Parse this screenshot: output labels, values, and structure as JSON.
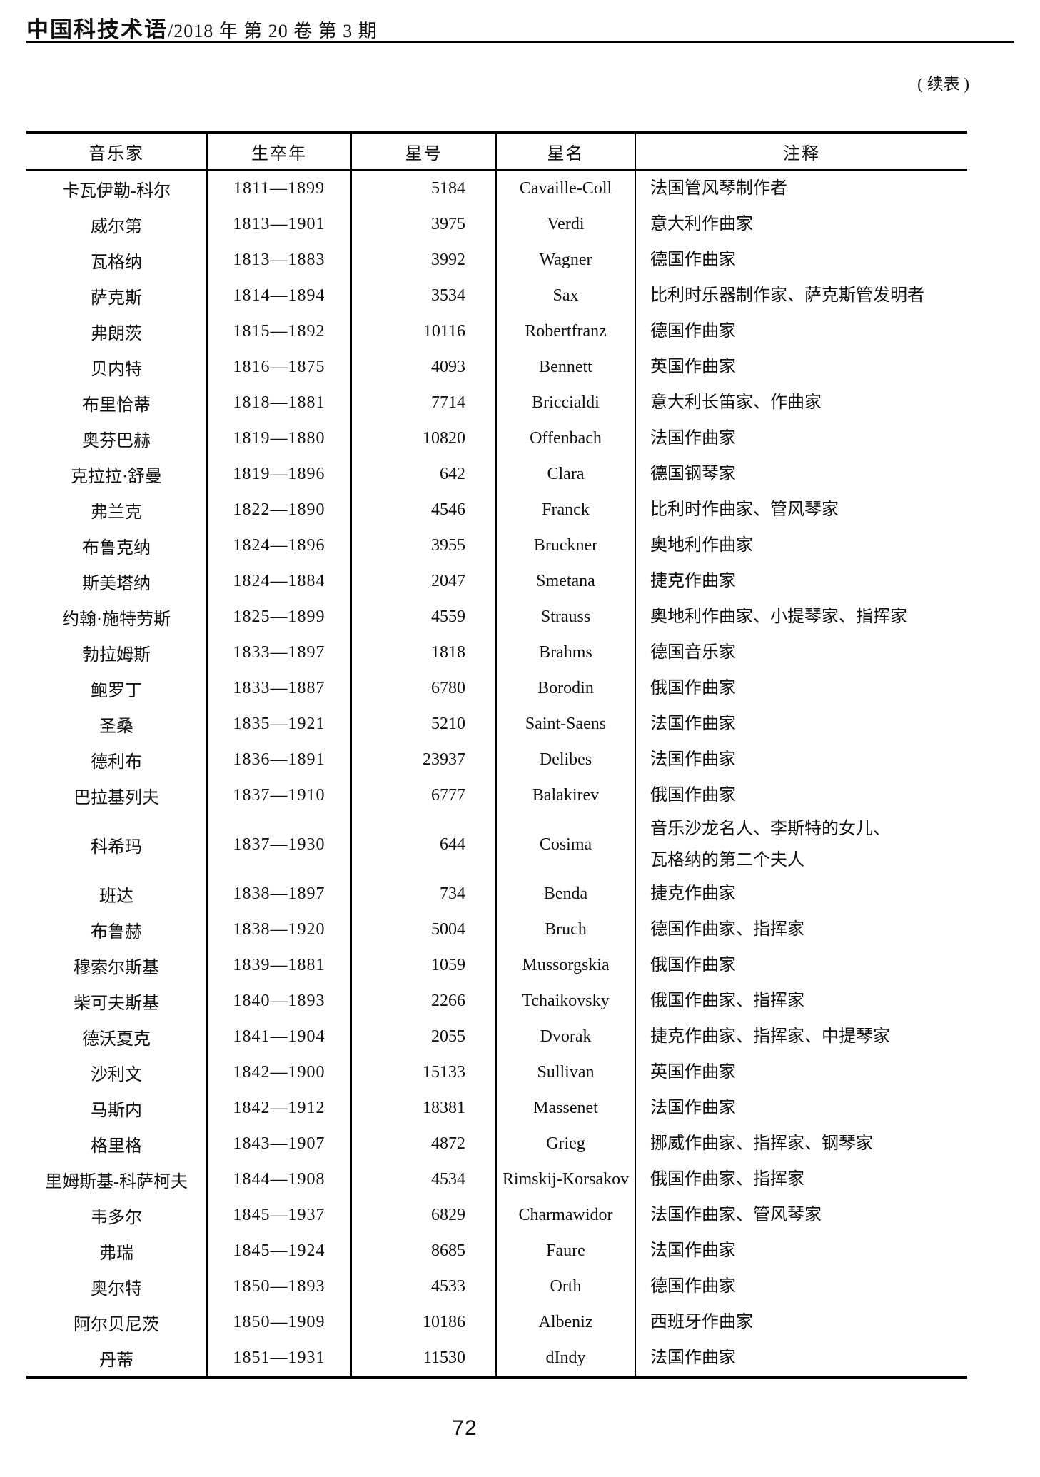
{
  "header": {
    "journal": "中国科技术语",
    "issue": "/2018 年  第 20 卷  第 3 期"
  },
  "continued_label": "( 续表 )",
  "table": {
    "columns": [
      "音乐家",
      "生卒年",
      "星号",
      "星名",
      "注释"
    ],
    "rows": [
      {
        "musician": "卡瓦伊勒-科尔",
        "years": "1811—1899",
        "number": "5184",
        "star": "Cavaille-Coll",
        "note": "法国管风琴制作者"
      },
      {
        "musician": "威尔第",
        "years": "1813—1901",
        "number": "3975",
        "star": "Verdi",
        "note": "意大利作曲家"
      },
      {
        "musician": "瓦格纳",
        "years": "1813—1883",
        "number": "3992",
        "star": "Wagner",
        "note": "德国作曲家"
      },
      {
        "musician": "萨克斯",
        "years": "1814—1894",
        "number": "3534",
        "star": "Sax",
        "note": "比利时乐器制作家、萨克斯管发明者"
      },
      {
        "musician": "弗朗茨",
        "years": "1815—1892",
        "number": "10116",
        "star": "Robertfranz",
        "note": "德国作曲家"
      },
      {
        "musician": "贝内特",
        "years": "1816—1875",
        "number": "4093",
        "star": "Bennett",
        "note": "英国作曲家"
      },
      {
        "musician": "布里恰蒂",
        "years": "1818—1881",
        "number": "7714",
        "star": "Briccialdi",
        "note": "意大利长笛家、作曲家"
      },
      {
        "musician": "奥芬巴赫",
        "years": "1819—1880",
        "number": "10820",
        "star": "Offenbach",
        "note": "法国作曲家"
      },
      {
        "musician": "克拉拉·舒曼",
        "years": "1819—1896",
        "number": "642",
        "star": "Clara",
        "note": "德国钢琴家"
      },
      {
        "musician": "弗兰克",
        "years": "1822—1890",
        "number": "4546",
        "star": "Franck",
        "note": "比利时作曲家、管风琴家"
      },
      {
        "musician": "布鲁克纳",
        "years": "1824—1896",
        "number": "3955",
        "star": "Bruckner",
        "note": "奥地利作曲家"
      },
      {
        "musician": "斯美塔纳",
        "years": "1824—1884",
        "number": "2047",
        "star": "Smetana",
        "note": "捷克作曲家"
      },
      {
        "musician": "约翰·施特劳斯",
        "years": "1825—1899",
        "number": "4559",
        "star": "Strauss",
        "note": "奥地利作曲家、小提琴家、指挥家"
      },
      {
        "musician": "勃拉姆斯",
        "years": "1833—1897",
        "number": "1818",
        "star": "Brahms",
        "note": "德国音乐家"
      },
      {
        "musician": "鲍罗丁",
        "years": "1833—1887",
        "number": "6780",
        "star": "Borodin",
        "note": "俄国作曲家"
      },
      {
        "musician": "圣桑",
        "years": "1835—1921",
        "number": "5210",
        "star": "Saint-Saens",
        "note": "法国作曲家"
      },
      {
        "musician": "德利布",
        "years": "1836—1891",
        "number": "23937",
        "star": "Delibes",
        "note": "法国作曲家"
      },
      {
        "musician": "巴拉基列夫",
        "years": "1837—1910",
        "number": "6777",
        "star": "Balakirev",
        "note": "俄国作曲家"
      },
      {
        "musician": "科希玛",
        "years": "1837—1930",
        "number": "644",
        "star": "Cosima",
        "note": "音乐沙龙名人、李斯特的女儿、\n瓦格纳的第二个夫人"
      },
      {
        "musician": "班达",
        "years": "1838—1897",
        "number": "734",
        "star": "Benda",
        "note": "捷克作曲家"
      },
      {
        "musician": "布鲁赫",
        "years": "1838—1920",
        "number": "5004",
        "star": "Bruch",
        "note": "德国作曲家、指挥家"
      },
      {
        "musician": "穆索尔斯基",
        "years": "1839—1881",
        "number": "1059",
        "star": "Mussorgskia",
        "note": "俄国作曲家"
      },
      {
        "musician": "柴可夫斯基",
        "years": "1840—1893",
        "number": "2266",
        "star": "Tchaikovsky",
        "note": "俄国作曲家、指挥家"
      },
      {
        "musician": "德沃夏克",
        "years": "1841—1904",
        "number": "2055",
        "star": "Dvorak",
        "note": "捷克作曲家、指挥家、中提琴家"
      },
      {
        "musician": "沙利文",
        "years": "1842—1900",
        "number": "15133",
        "star": "Sullivan",
        "note": "英国作曲家"
      },
      {
        "musician": "马斯内",
        "years": "1842—1912",
        "number": "18381",
        "star": "Massenet",
        "note": "法国作曲家"
      },
      {
        "musician": "格里格",
        "years": "1843—1907",
        "number": "4872",
        "star": "Grieg",
        "note": "挪威作曲家、指挥家、钢琴家"
      },
      {
        "musician": "里姆斯基-科萨柯夫",
        "years": "1844—1908",
        "number": "4534",
        "star": "Rimskij-Korsakov",
        "note": "俄国作曲家、指挥家"
      },
      {
        "musician": "韦多尔",
        "years": "1845—1937",
        "number": "6829",
        "star": "Charmawidor",
        "note": "法国作曲家、管风琴家"
      },
      {
        "musician": "弗瑞",
        "years": "1845—1924",
        "number": "8685",
        "star": "Faure",
        "note": "法国作曲家"
      },
      {
        "musician": "奥尔特",
        "years": "1850—1893",
        "number": "4533",
        "star": "Orth",
        "note": "德国作曲家"
      },
      {
        "musician": "阿尔贝尼茨",
        "years": "1850—1909",
        "number": "10186",
        "star": "Albeniz",
        "note": "西班牙作曲家"
      },
      {
        "musician": "丹蒂",
        "years": "1851—1931",
        "number": "11530",
        "star": "dIndy",
        "note": "法国作曲家"
      }
    ]
  },
  "page_number": "72"
}
